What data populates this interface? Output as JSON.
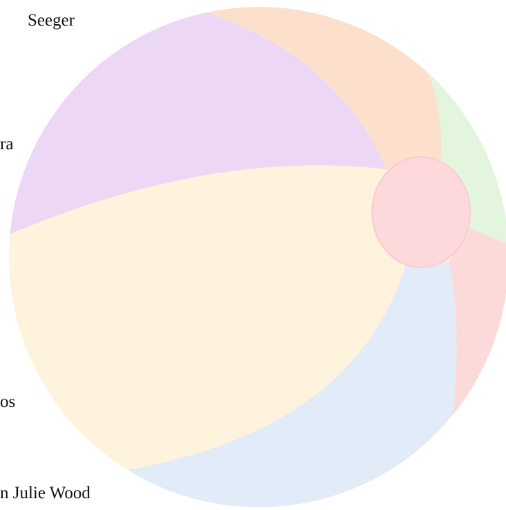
{
  "texts": [
    "Seeger",
    "ra",
    "os",
    "n Julie Wood"
  ]
}
